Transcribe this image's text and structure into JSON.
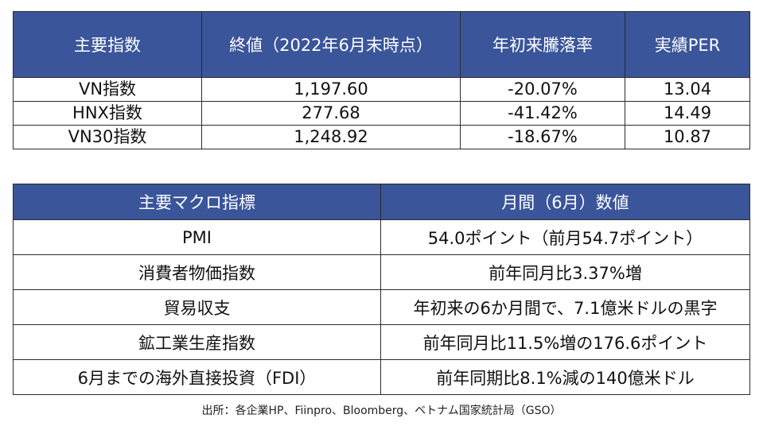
{
  "index_table": {
    "headers": [
      "主要指数",
      "終値（2022年6月末時点）",
      "年初来騰落率",
      "実績PER"
    ],
    "rows": [
      [
        "VN指数",
        "1,197.60",
        "-20.07%",
        "13.04"
      ],
      [
        "HNX指数",
        "277.68",
        "-41.42%",
        "14.49"
      ],
      [
        "VN30指数",
        "1,248.92",
        "-18.67%",
        "10.87"
      ]
    ]
  },
  "macro_table": {
    "headers": [
      "主要マクロ指標",
      "月間（6月）数値"
    ],
    "rows": [
      [
        "PMI",
        "54.0ポイント（前月54.7ポイント）"
      ],
      [
        "消費者物価指数",
        "前年同月比3.37%増"
      ],
      [
        "貿易収支",
        "年初来の6か月間で、7.1億米ドルの黒字"
      ],
      [
        "鉱工業生産指数",
        "前年同月比11.5%増の176.6ポイント"
      ],
      [
        "6月までの海外直接投資（FDI）",
        "前年同期比8.1%減の140億米ドル"
      ]
    ]
  },
  "source": "出所：各企業HP、Fiinpro、Bloomberg、ベトナム国家統計局（GSO）",
  "colors": {
    "header_bg": "#3a559a",
    "header_text": "#ffffff",
    "border": "#2b2b2b"
  }
}
